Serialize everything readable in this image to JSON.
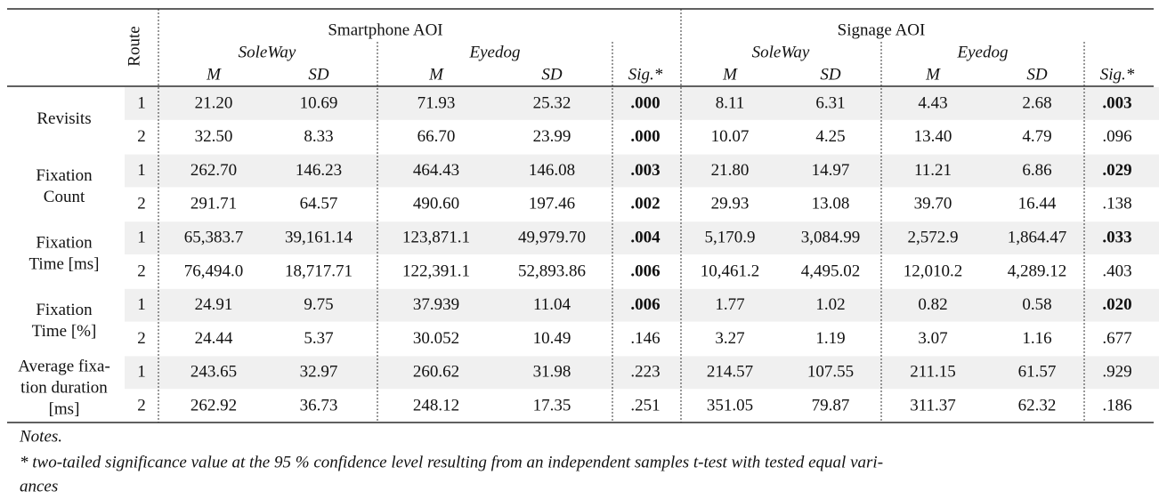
{
  "table": {
    "corner_header": "Route",
    "group_headers": [
      "Smartphone AOI",
      "Signage AOI"
    ],
    "subgroup_headers": [
      "SoleWay",
      "Eyedog",
      "SoleWay",
      "Eyedog"
    ],
    "column_headers": [
      "M",
      "SD",
      "M",
      "SD",
      "Sig.*",
      "M",
      "SD",
      "M",
      "SD",
      "Sig.*"
    ],
    "measures": [
      {
        "label": [
          "Revisits"
        ],
        "rows": [
          {
            "route": "1",
            "cells": [
              "21.20",
              "10.69",
              "71.93",
              "25.32",
              ".000",
              "8.11",
              "6.31",
              "4.43",
              "2.68",
              ".003"
            ],
            "significant": [
              true,
              true
            ]
          },
          {
            "route": "2",
            "cells": [
              "32.50",
              "8.33",
              "66.70",
              "23.99",
              ".000",
              "10.07",
              "4.25",
              "13.40",
              "4.79",
              ".096"
            ],
            "significant": [
              true,
              false
            ]
          }
        ]
      },
      {
        "label": [
          "Fixation",
          "Count"
        ],
        "rows": [
          {
            "route": "1",
            "cells": [
              "262.70",
              "146.23",
              "464.43",
              "146.08",
              ".003",
              "21.80",
              "14.97",
              "11.21",
              "6.86",
              ".029"
            ],
            "significant": [
              true,
              true
            ]
          },
          {
            "route": "2",
            "cells": [
              "291.71",
              "64.57",
              "490.60",
              "197.46",
              ".002",
              "29.93",
              "13.08",
              "39.70",
              "16.44",
              ".138"
            ],
            "significant": [
              true,
              false
            ]
          }
        ]
      },
      {
        "label": [
          "Fixation",
          "Time [ms]"
        ],
        "rows": [
          {
            "route": "1",
            "cells": [
              "65,383.7",
              "39,161.14",
              "123,871.1",
              "49,979.70",
              ".004",
              "5,170.9",
              "3,084.99",
              "2,572.9",
              "1,864.47",
              ".033"
            ],
            "significant": [
              true,
              true
            ]
          },
          {
            "route": "2",
            "cells": [
              "76,494.0",
              "18,717.71",
              "122,391.1",
              "52,893.86",
              ".006",
              "10,461.2",
              "4,495.02",
              "12,010.2",
              "4,289.12",
              ".403"
            ],
            "significant": [
              true,
              false
            ]
          }
        ]
      },
      {
        "label": [
          "Fixation",
          "Time [%]"
        ],
        "rows": [
          {
            "route": "1",
            "cells": [
              "24.91",
              "9.75",
              "37.939",
              "11.04",
              ".006",
              "1.77",
              "1.02",
              "0.82",
              "0.58",
              ".020"
            ],
            "significant": [
              true,
              true
            ]
          },
          {
            "route": "2",
            "cells": [
              "24.44",
              "5.37",
              "30.052",
              "10.49",
              ".146",
              "3.27",
              "1.19",
              "3.07",
              "1.16",
              ".677"
            ],
            "significant": [
              false,
              false
            ]
          }
        ]
      },
      {
        "label": [
          "Average fixa-",
          "tion duration",
          "[ms]"
        ],
        "rows": [
          {
            "route": "1",
            "cells": [
              "243.65",
              "32.97",
              "260.62",
              "31.98",
              ".223",
              "214.57",
              "107.55",
              "211.15",
              "61.57",
              ".929"
            ],
            "significant": [
              false,
              false
            ]
          },
          {
            "route": "2",
            "cells": [
              "262.92",
              "36.73",
              "248.12",
              "17.35",
              ".251",
              "351.05",
              "79.87",
              "311.37",
              "62.32",
              ".186"
            ],
            "significant": [
              false,
              false
            ]
          }
        ]
      }
    ]
  },
  "notes": {
    "title": "Notes.",
    "text": [
      "* two-tailed significance value at the 95 % confidence level resulting from an independent samples t-test with tested equal vari-",
      "ances"
    ]
  }
}
